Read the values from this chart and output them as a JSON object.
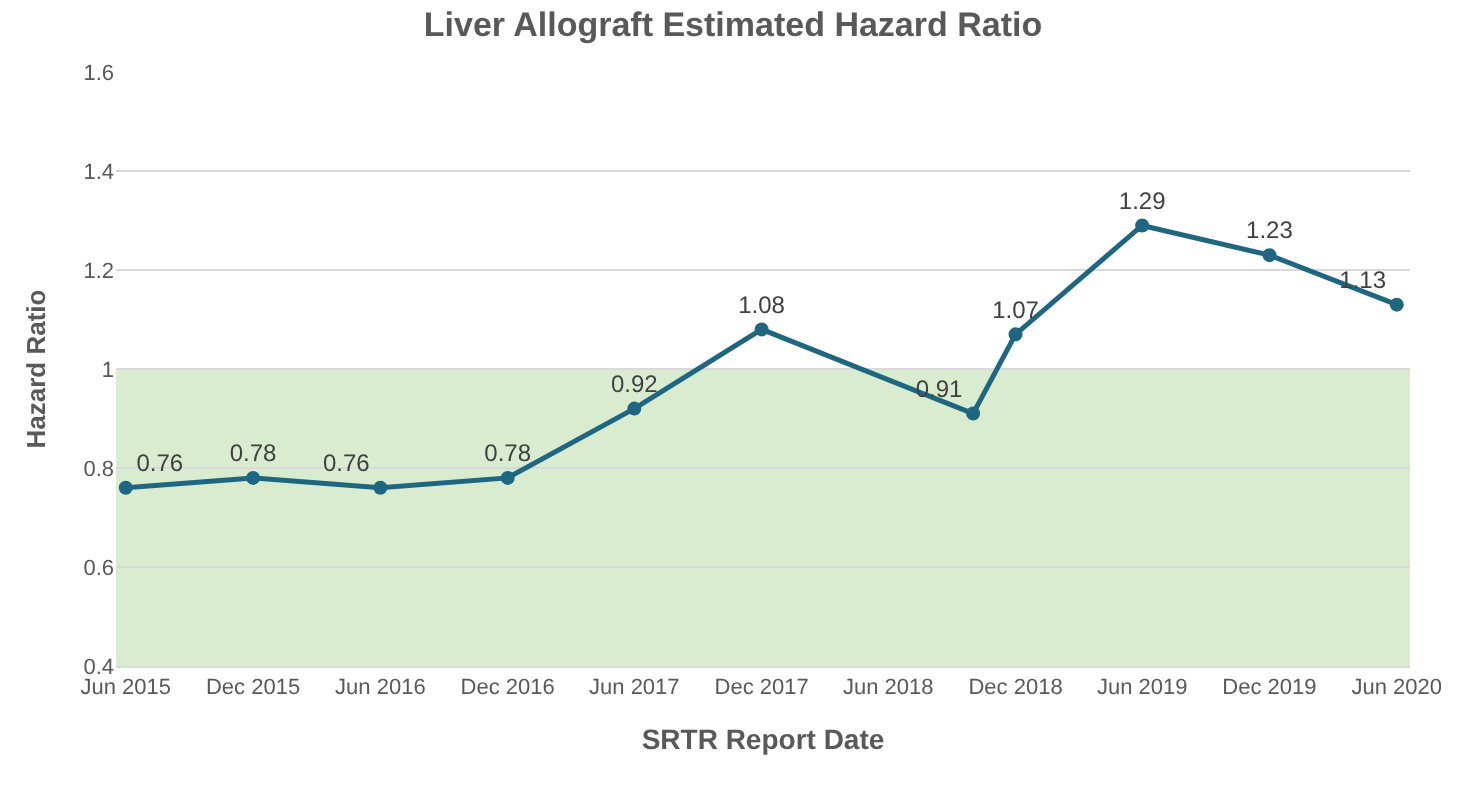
{
  "chart_data": {
    "type": "line",
    "title": "Liver Allograft Estimated Hazard Ratio",
    "xlabel": "SRTR Report Date",
    "ylabel": "Hazard Ratio",
    "x": [
      "2015-06",
      "2015-12",
      "2016-06",
      "2016-12",
      "2017-06",
      "2017-12",
      "2018-10",
      "2018-12",
      "2019-06",
      "2019-12",
      "2020-06"
    ],
    "series": [
      {
        "color": "#1f6680",
        "values": [
          0.76,
          0.78,
          0.76,
          0.78,
          0.92,
          1.08,
          0.91,
          1.07,
          1.29,
          1.23,
          1.13
        ]
      }
    ],
    "data_labels": true,
    "marker": "circle",
    "line_style": "solid",
    "grid": "y",
    "legend": false,
    "xlim": [
      "2015-05-18",
      "2020-06-20"
    ],
    "xticks": [
      {
        "value": "2015-06",
        "label": "Jun 2015"
      },
      {
        "value": "2015-12",
        "label": "Dec 2015"
      },
      {
        "value": "2016-06",
        "label": "Jun 2016"
      },
      {
        "value": "2016-12",
        "label": "Dec 2016"
      },
      {
        "value": "2017-06",
        "label": "Jun 2017"
      },
      {
        "value": "2017-12",
        "label": "Dec 2017"
      },
      {
        "value": "2018-06",
        "label": "Jun 2018"
      },
      {
        "value": "2018-12",
        "label": "Dec 2018"
      },
      {
        "value": "2019-06",
        "label": "Jun 2019"
      },
      {
        "value": "2019-12",
        "label": "Dec 2019"
      },
      {
        "value": "2020-06",
        "label": "Jun 2020"
      }
    ],
    "ylim": [
      0.4,
      1.6
    ],
    "yticks": [
      0.4,
      0.6,
      0.8,
      1,
      1.2,
      1.4,
      1.6
    ],
    "bands": [
      {
        "axis": "y",
        "from": 0.4,
        "to": 1,
        "color": "#d9ecd0"
      }
    ]
  }
}
